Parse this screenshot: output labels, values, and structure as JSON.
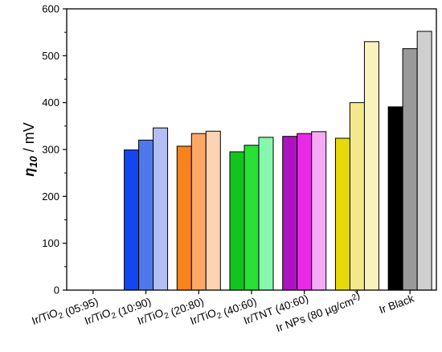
{
  "chart_data": {
    "type": "bar",
    "ylabel": {
      "symbol": "η",
      "subscript": "10",
      "unit": " / mV"
    },
    "ylim": [
      0,
      600
    ],
    "yticks": [
      0,
      100,
      200,
      300,
      400,
      500,
      600
    ],
    "grid": false,
    "categories": [
      {
        "label_parts": [
          {
            "t": "Ir/TiO"
          },
          {
            "t": "2",
            "sub": true
          },
          {
            "t": " (05:95)"
          }
        ]
      },
      {
        "label_parts": [
          {
            "t": "Ir/TiO"
          },
          {
            "t": "2",
            "sub": true
          },
          {
            "t": " (10:90)"
          }
        ]
      },
      {
        "label_parts": [
          {
            "t": "Ir/TiO"
          },
          {
            "t": "2",
            "sub": true
          },
          {
            "t": " (20:80)"
          }
        ]
      },
      {
        "label_parts": [
          {
            "t": "Ir/TiO"
          },
          {
            "t": "2",
            "sub": true
          },
          {
            "t": " (40:60)"
          }
        ]
      },
      {
        "label_parts": [
          {
            "t": "Ir/TNT (40:60)"
          }
        ]
      },
      {
        "label_parts": [
          {
            "t": "Ir NPs (80 µg/cm"
          },
          {
            "t": "2",
            "sup": true
          },
          {
            "t": ")"
          }
        ]
      },
      {
        "label_parts": [
          {
            "t": "Ir Black"
          }
        ]
      }
    ],
    "groups": [
      {
        "values": [],
        "colors": []
      },
      {
        "values": [
          299,
          320,
          346
        ],
        "colors": [
          "#1446f0",
          "#4f78ea",
          "#b3bff2"
        ]
      },
      {
        "values": [
          307,
          334,
          339
        ],
        "colors": [
          "#f8821c",
          "#fca867",
          "#fdd3b3"
        ]
      },
      {
        "values": [
          295,
          309,
          326
        ],
        "colors": [
          "#13c420",
          "#28e036",
          "#86f7ac"
        ]
      },
      {
        "values": [
          328,
          334,
          338
        ],
        "colors": [
          "#ad12c0",
          "#e92ae6",
          "#f6a9f7"
        ]
      },
      {
        "values": [
          324,
          400,
          530
        ],
        "colors": [
          "#e6d90a",
          "#f3e98a",
          "#f8f2bd"
        ]
      },
      {
        "values": [
          391,
          515,
          552
        ],
        "colors": [
          "#000000",
          "#9a9a9a",
          "#cfcfcf"
        ]
      }
    ]
  }
}
